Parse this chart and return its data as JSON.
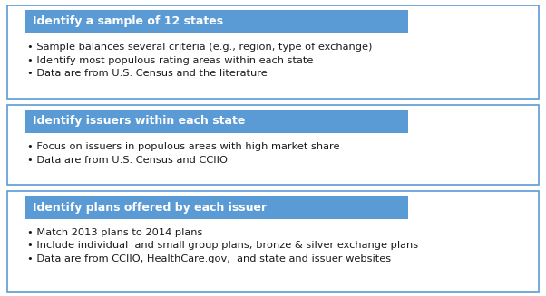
{
  "boxes": [
    {
      "header": "Identify a sample of 12 states",
      "bullets": [
        "Sample balances several criteria (e.g., region, type of exchange)",
        "Identify most populous rating areas within each state",
        "Data are from U.S. Census and the literature"
      ]
    },
    {
      "header": "Identify issuers within each state",
      "bullets": [
        "Focus on issuers in populous areas with high market share",
        "Data are from U.S. Census and CCIIO"
      ]
    },
    {
      "header": "Identify plans offered by each issuer",
      "bullets": [
        "Match 2013 plans to 2014 plans",
        "Include individual  and small group plans; bronze & silver exchange plans",
        "Data are from CCIIO, HealthCare.gov,  and state and issuer websites"
      ]
    }
  ],
  "header_color": "#5B9BD5",
  "header_text_color": "#FFFFFF",
  "border_color": "#5B9BD5",
  "box_fill_color": "#FFFFFF",
  "bullet_text_color": "#1A1A1A",
  "header_font_size": 9.0,
  "bullet_font_size": 8.2,
  "background_color": "#FFFFFF"
}
